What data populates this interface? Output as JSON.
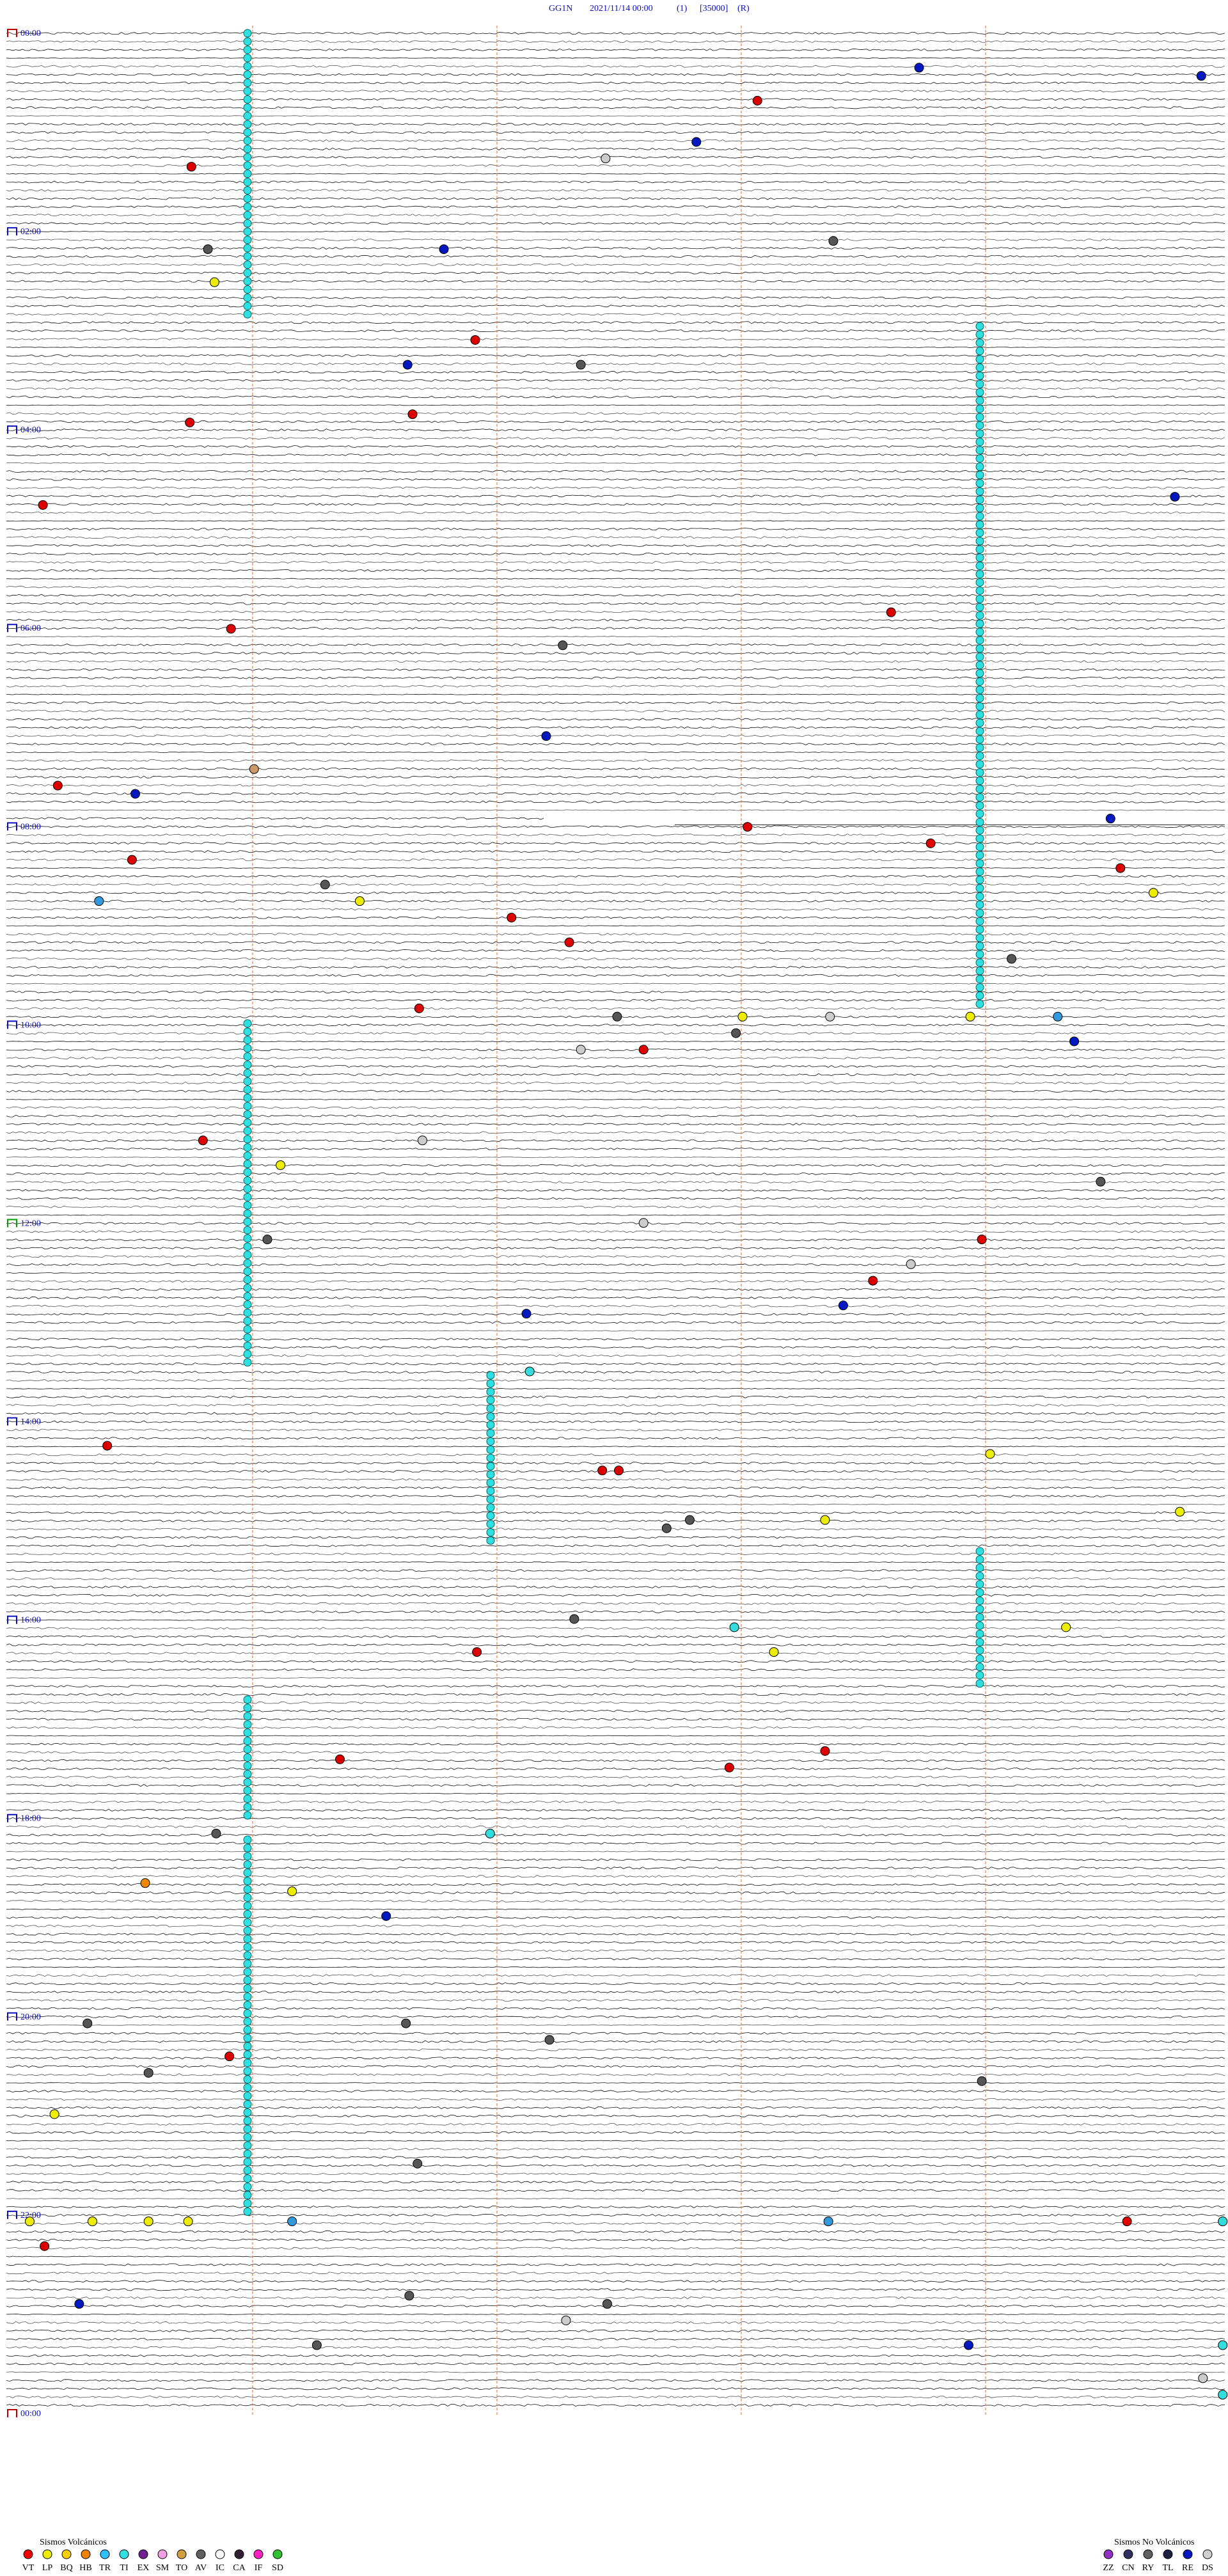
{
  "header": {
    "station": "GG1N",
    "datetime": "2021/11/14 00:00",
    "channel": "(1)",
    "scale": "[35000]",
    "mode": "(R)"
  },
  "time_labels": [
    "00:00",
    "02:00",
    "04:00",
    "06:00",
    "08:00",
    "10:00",
    "12:00",
    "14:00",
    "16:00",
    "18:00",
    "20:00",
    "22:00",
    "00:00"
  ],
  "legend_volcanic": {
    "title": "Sismos Volcánicos",
    "codes": [
      "VT",
      "LP",
      "BQ",
      "HB",
      "TR",
      "TI",
      "EX",
      "SM",
      "TO",
      "AV",
      "IC",
      "CA",
      "IF",
      "SD"
    ]
  },
  "legend_non_volcanic": {
    "title": "Sismos No Volcánicos",
    "codes": [
      "ZZ",
      "CN",
      "RY",
      "TL",
      "RE",
      "DS"
    ]
  }
}
